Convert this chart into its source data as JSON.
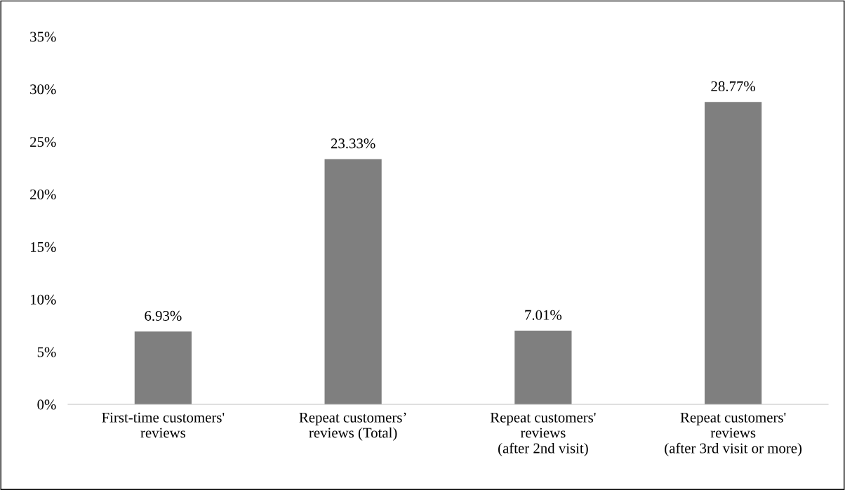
{
  "chart_data": {
    "type": "bar",
    "categories": [
      "First-time customers'\nreviews",
      "Repeat customers’\nreviews (Total)",
      "Repeat customers'\nreviews\n(after 2nd visit)",
      "Repeat customers'\nreviews\n(after 3rd visit or more)"
    ],
    "values": [
      6.93,
      23.33,
      7.01,
      28.77
    ],
    "value_labels": [
      "6.93%",
      "23.33%",
      "7.01%",
      "28.77%"
    ],
    "color": "#7f7f7f",
    "ylim": [
      0,
      35
    ],
    "yticks": [
      {
        "value": 0,
        "label": "0%"
      },
      {
        "value": 5,
        "label": "5%"
      },
      {
        "value": 10,
        "label": "10%"
      },
      {
        "value": 15,
        "label": "15%"
      },
      {
        "value": 20,
        "label": "20%"
      },
      {
        "value": 25,
        "label": "25%"
      },
      {
        "value": 30,
        "label": "30%"
      },
      {
        "value": 35,
        "label": "35%"
      }
    ],
    "grid": false,
    "legend": false
  }
}
